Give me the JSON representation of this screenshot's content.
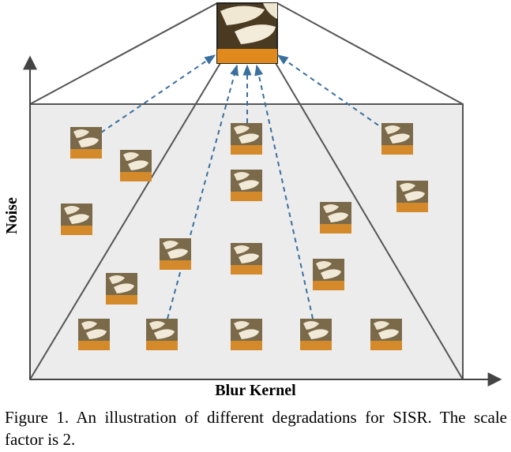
{
  "figure": {
    "xlabel": "Blur Kernel",
    "ylabel": "Noise"
  },
  "caption": {
    "text": "Figure 1. An illustration of different degradations for SISR. The scale factor is 2."
  },
  "colors": {
    "plane": "#ececec",
    "arrow": "#3a6f9e",
    "outline": "#555555"
  }
}
